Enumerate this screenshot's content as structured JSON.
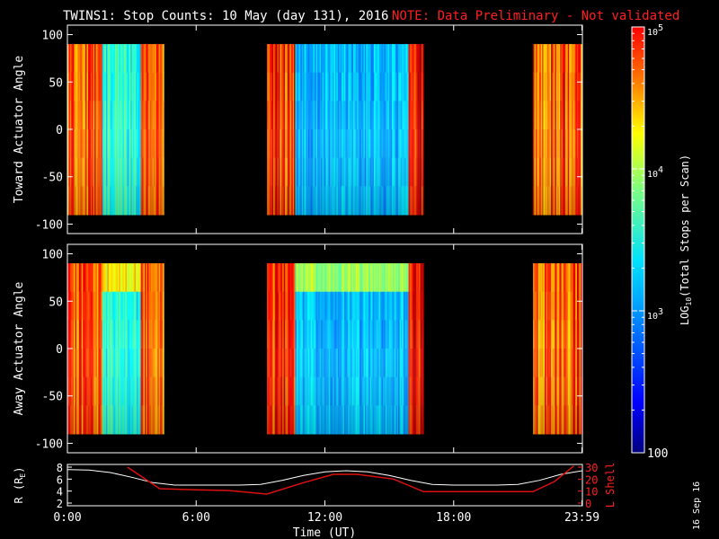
{
  "title": {
    "main": "TWINS1: Stop Counts: 10 May (day 131), 2016",
    "note": "NOTE: Data Preliminary - Not validated"
  },
  "stamp": "16 Sep 16",
  "colors": {
    "background": "#000000",
    "axis": "#ffffff",
    "note": "#ff2020",
    "r_line": "#ffffff",
    "lshell_line": "#dd1010"
  },
  "chart_data": [
    {
      "type": "heatmap",
      "panel": "toward",
      "ylabel": "Toward Actuator Angle",
      "ylim": [
        -110,
        110
      ],
      "yticks": [
        100,
        50,
        0,
        -50,
        -100
      ],
      "xlim": [
        0,
        24
      ],
      "data_extent_deg": [
        -90,
        90
      ],
      "segments_hours": [
        [
          0,
          4.5
        ],
        [
          9.3,
          16.6
        ],
        [
          21.7,
          24
        ]
      ],
      "color_scale": "log10",
      "clim": [
        100,
        100000
      ]
    },
    {
      "type": "heatmap",
      "panel": "away",
      "ylabel": "Away Actuator Angle",
      "ylim": [
        -110,
        110
      ],
      "yticks": [
        100,
        50,
        0,
        -50,
        -100
      ],
      "xlim": [
        0,
        24
      ],
      "data_extent_deg": [
        -90,
        90
      ],
      "segments_hours": [
        [
          0,
          4.5
        ],
        [
          9.3,
          16.6
        ],
        [
          21.7,
          24
        ]
      ],
      "color_scale": "log10",
      "clim": [
        100,
        100000
      ]
    },
    {
      "type": "line",
      "panel": "orbit",
      "xlabel": "Time (UT)",
      "xtick_labels": [
        "0:00",
        "6:00",
        "12:00",
        "18:00",
        "23:59"
      ],
      "xticks_hours": [
        0,
        6,
        12,
        18,
        23.98
      ],
      "ylabel_left": "R (R_E)",
      "ylabel_right": "L Shell",
      "left_ylim": [
        2,
        8
      ],
      "left_yticks": [
        8,
        6,
        4,
        2
      ],
      "right_ylim": [
        0,
        30
      ],
      "right_yticks": [
        30,
        20,
        10,
        0
      ],
      "series": [
        {
          "name": "R",
          "axis": "left",
          "x": [
            0,
            1,
            2,
            3,
            4,
            5,
            6,
            7,
            8,
            9,
            10,
            11,
            12,
            13,
            14,
            15,
            16,
            17,
            18,
            19,
            20,
            21,
            22,
            23,
            24
          ],
          "values": [
            7.6,
            7.5,
            7.1,
            6.3,
            5.4,
            5.0,
            5.0,
            5.0,
            5.0,
            5.1,
            5.8,
            6.6,
            7.2,
            7.4,
            7.2,
            6.6,
            5.8,
            5.1,
            5.0,
            5.0,
            5.0,
            5.1,
            5.8,
            6.8,
            7.4
          ]
        },
        {
          "name": "L Shell",
          "axis": "right",
          "x": [
            2.8,
            4.3,
            6.0,
            7.5,
            9.3,
            11.0,
            12.4,
            13.5,
            15.2,
            16.6,
            18.0,
            20.0,
            21.7,
            22.7,
            23.6
          ],
          "values": [
            30,
            12,
            11,
            10.5,
            7.5,
            17,
            24,
            24,
            20,
            9.5,
            9.5,
            9.5,
            9.5,
            18,
            31
          ]
        }
      ]
    }
  ],
  "colorbar": {
    "ticks": [
      {
        "label": "10",
        "sup": "5"
      },
      {
        "label": "10",
        "sup": "4"
      },
      {
        "label": "10",
        "sup": "3"
      },
      {
        "label": "100",
        "sup": ""
      }
    ],
    "label_pre": "LOG",
    "label_sub": "10",
    "label_post": "(Total Stops per Scan)"
  }
}
